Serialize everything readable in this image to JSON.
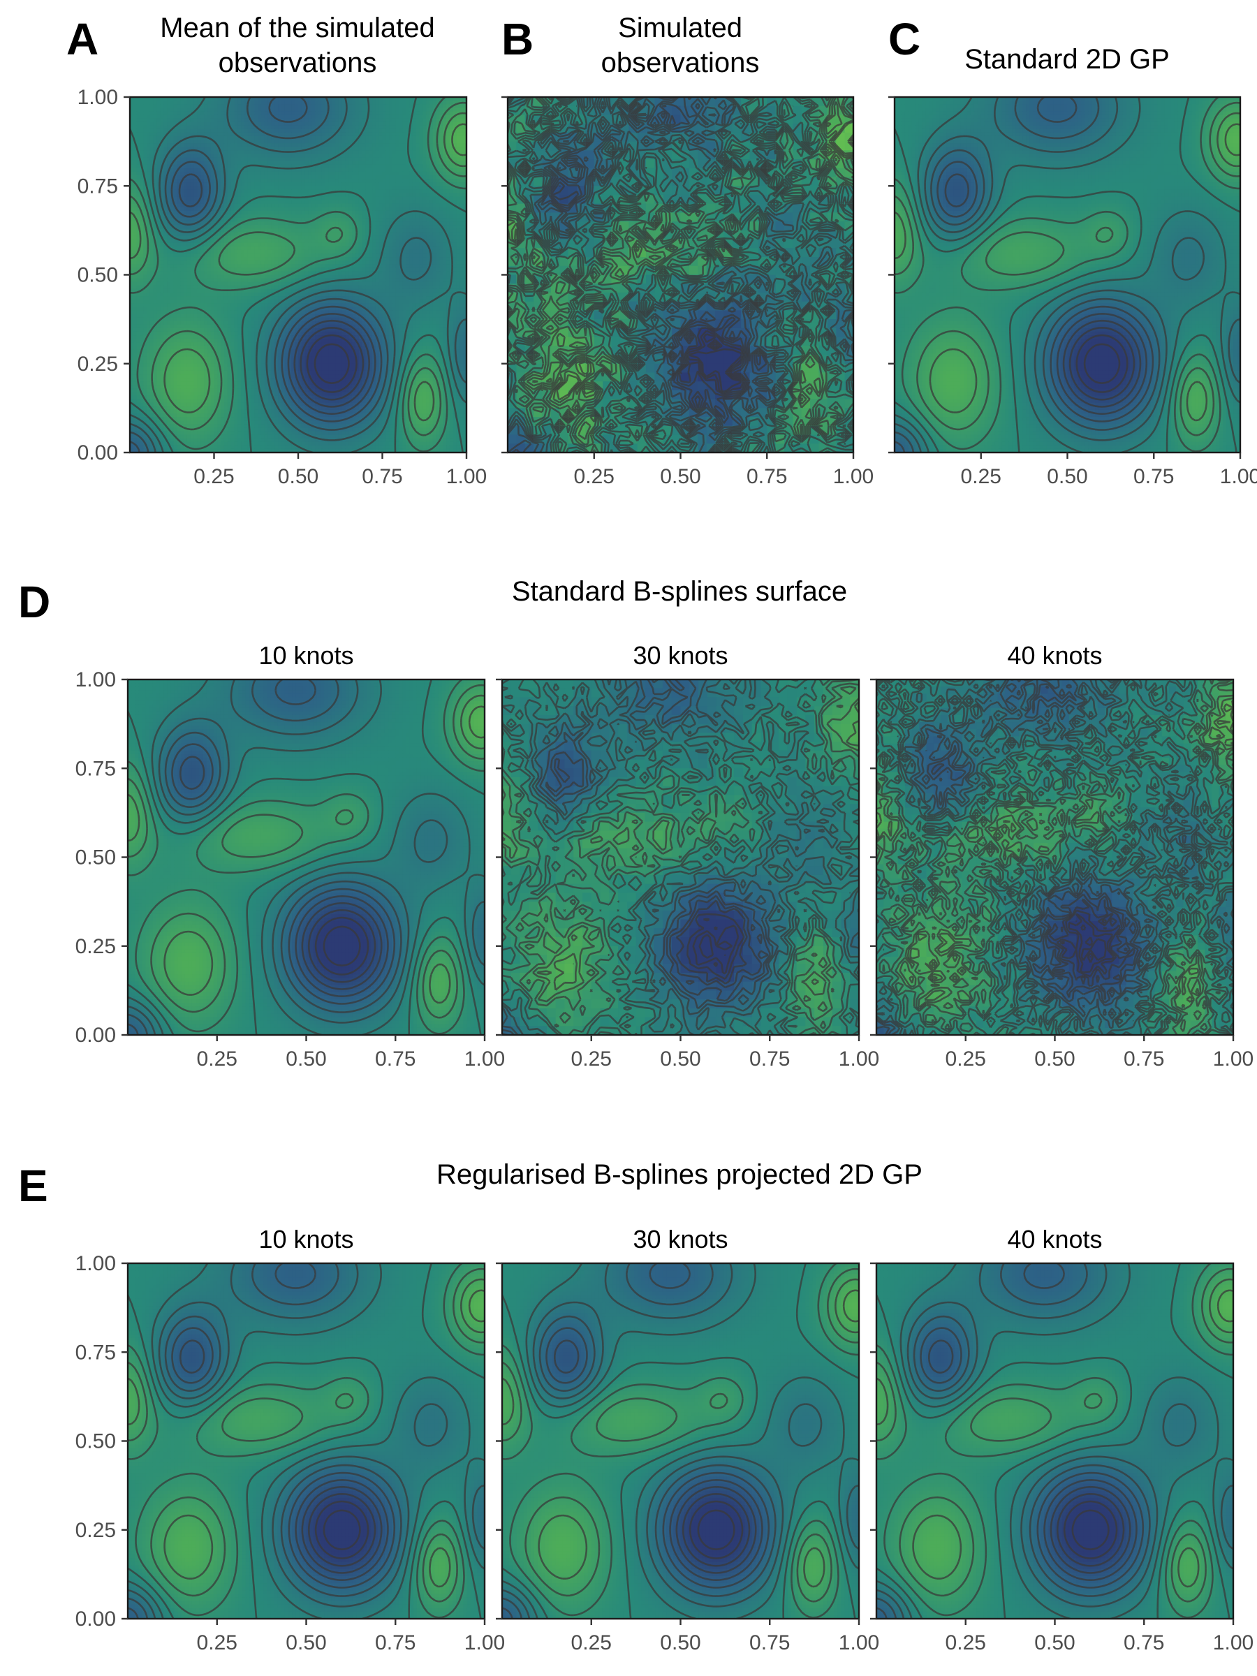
{
  "panel_letters": {
    "a": "A",
    "b": "B",
    "c": "C",
    "d": "D",
    "e": "E"
  },
  "titles": {
    "a_line1": "Mean of the simulated",
    "a_line2": "observations",
    "b_line1": "Simulated",
    "b_line2": "observations",
    "c": "Standard 2D GP",
    "d": "Standard B-splines surface",
    "e": "Regularised B-splines projected 2D GP"
  },
  "colors": {
    "low": "#2c3b74",
    "mid_low": "#2d6286",
    "mid": "#288a7a",
    "mid_high": "#4fae57",
    "high": "#7ed24a",
    "contour": "#3a3a3a"
  },
  "chart_data": [
    {
      "id": "A",
      "type": "heatmap",
      "title": "Mean of the simulated observations",
      "x_ticks": [
        "0.25",
        "0.50",
        "0.75",
        "1.00"
      ],
      "y_ticks": [
        "0.00",
        "0.25",
        "0.50",
        "0.75",
        "1.00"
      ],
      "xlim": [
        0,
        1
      ],
      "ylim": [
        0,
        1
      ],
      "contours": true,
      "noise": 0,
      "cells": 100,
      "surface": "smooth field: low at (0.60, 0.25) and (0.18, 0.73), high at (0.17, 0.20), (0.88, 0.15) and (0.98, 0.88)"
    },
    {
      "id": "B",
      "type": "heatmap",
      "title": "Simulated observations",
      "x_ticks": [
        "0.25",
        "0.50",
        "0.75",
        "1.00"
      ],
      "y_ticks": [
        "0.00",
        "0.25",
        "0.50",
        "0.75",
        "1.00"
      ],
      "xlim": [
        0,
        1
      ],
      "ylim": [
        0,
        1
      ],
      "contours": true,
      "noise": 0.95,
      "cells": 40
    },
    {
      "id": "C",
      "type": "heatmap",
      "title": "Standard 2D GP",
      "x_ticks": [
        "0.25",
        "0.50",
        "0.75",
        "1.00"
      ],
      "y_ticks": [
        "0.00",
        "0.25",
        "0.50",
        "0.75",
        "1.00"
      ],
      "xlim": [
        0,
        1
      ],
      "ylim": [
        0,
        1
      ],
      "contours": true,
      "noise": 0,
      "cells": 100
    },
    {
      "id": "D1",
      "type": "heatmap",
      "group": "Standard B-splines surface",
      "subtitle": "10 knots",
      "x_ticks": [
        "0.25",
        "0.50",
        "0.75",
        "1.00"
      ],
      "y_ticks": [
        "0.00",
        "0.25",
        "0.50",
        "0.75",
        "1.00"
      ],
      "xlim": [
        0,
        1
      ],
      "ylim": [
        0,
        1
      ],
      "contours": true,
      "noise": 0,
      "cells": 100
    },
    {
      "id": "D2",
      "type": "heatmap",
      "group": "Standard B-splines surface",
      "subtitle": "30 knots",
      "x_ticks": [
        "0.25",
        "0.50",
        "0.75",
        "1.00"
      ],
      "y_ticks": [
        "0.00",
        "0.25",
        "0.50",
        "0.75",
        "1.00"
      ],
      "xlim": [
        0,
        1
      ],
      "ylim": [
        0,
        1
      ],
      "contours": true,
      "noise": 0.45,
      "cells": 40
    },
    {
      "id": "D3",
      "type": "heatmap",
      "group": "Standard B-splines surface",
      "subtitle": "40 knots",
      "x_ticks": [
        "0.25",
        "0.50",
        "0.75",
        "1.00"
      ],
      "y_ticks": [
        "0.00",
        "0.25",
        "0.50",
        "0.75",
        "1.00"
      ],
      "xlim": [
        0,
        1
      ],
      "ylim": [
        0,
        1
      ],
      "contours": true,
      "noise": 0.6,
      "cells": 50
    },
    {
      "id": "E1",
      "type": "heatmap",
      "group": "Regularised B-splines projected 2D GP",
      "subtitle": "10 knots",
      "x_ticks": [
        "0.25",
        "0.50",
        "0.75",
        "1.00"
      ],
      "y_ticks": [
        "0.00",
        "0.25",
        "0.50",
        "0.75",
        "1.00"
      ],
      "xlim": [
        0,
        1
      ],
      "ylim": [
        0,
        1
      ],
      "contours": true,
      "noise": 0,
      "cells": 100
    },
    {
      "id": "E2",
      "type": "heatmap",
      "group": "Regularised B-splines projected 2D GP",
      "subtitle": "30 knots",
      "x_ticks": [
        "0.25",
        "0.50",
        "0.75",
        "1.00"
      ],
      "y_ticks": [
        "0.00",
        "0.25",
        "0.50",
        "0.75",
        "1.00"
      ],
      "xlim": [
        0,
        1
      ],
      "ylim": [
        0,
        1
      ],
      "contours": true,
      "noise": 0,
      "cells": 100
    },
    {
      "id": "E3",
      "type": "heatmap",
      "group": "Regularised B-splines projected 2D GP",
      "subtitle": "40 knots",
      "x_ticks": [
        "0.25",
        "0.50",
        "0.75",
        "1.00"
      ],
      "y_ticks": [
        "0.00",
        "0.25",
        "0.50",
        "0.75",
        "1.00"
      ],
      "xlim": [
        0,
        1
      ],
      "ylim": [
        0,
        1
      ],
      "contours": true,
      "noise": 0,
      "cells": 100
    }
  ]
}
